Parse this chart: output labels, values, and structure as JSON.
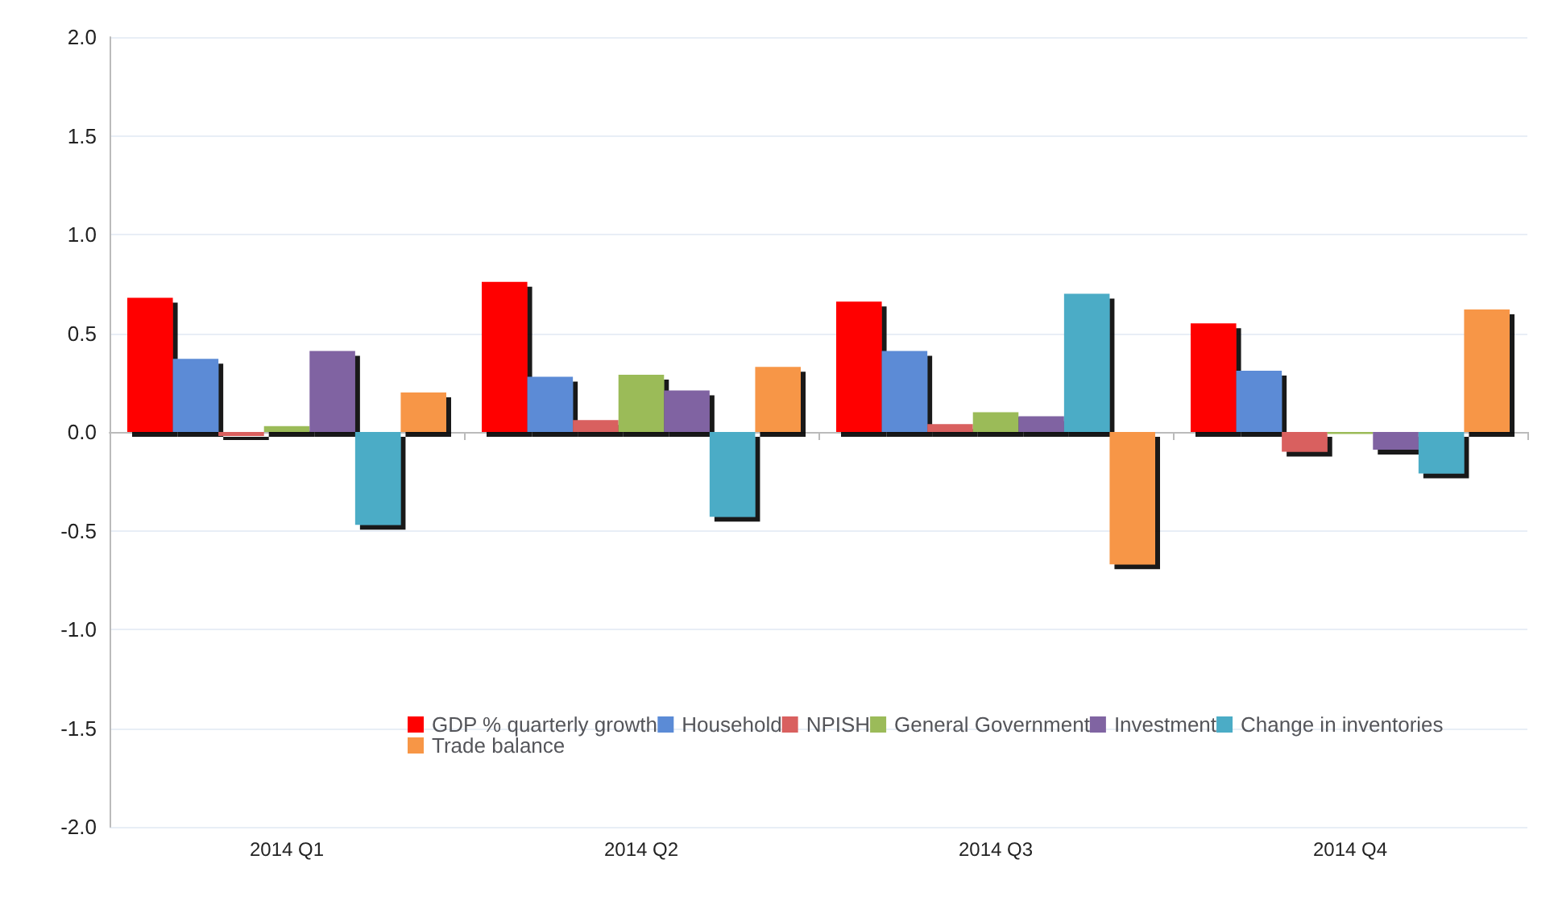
{
  "chart_data": {
    "type": "bar",
    "categories": [
      "2014 Q1",
      "2014 Q2",
      "2014 Q3",
      "2014 Q4"
    ],
    "series": [
      {
        "name": "GDP % quarterly growth",
        "color": "#ff0000",
        "values": [
          0.68,
          0.76,
          0.66,
          0.55
        ]
      },
      {
        "name": "Household",
        "color": "#5b8bd6",
        "values": [
          0.37,
          0.28,
          0.41,
          0.31
        ]
      },
      {
        "name": "NPISH",
        "color": "#d9605f",
        "values": [
          -0.02,
          0.06,
          0.04,
          -0.1
        ]
      },
      {
        "name": "General Government",
        "color": "#9bbb59",
        "values": [
          0.03,
          0.29,
          0.1,
          -0.01
        ]
      },
      {
        "name": "Investment",
        "color": "#8064a2",
        "values": [
          0.41,
          0.21,
          0.08,
          -0.09
        ]
      },
      {
        "name": "Change in inventories",
        "color": "#4bacc6",
        "values": [
          -0.47,
          -0.43,
          0.7,
          -0.21
        ]
      },
      {
        "name": "Trade balance",
        "color": "#f79646",
        "values": [
          0.2,
          0.33,
          -0.67,
          0.62
        ]
      }
    ],
    "ylim": [
      -2,
      2
    ],
    "yticks": [
      {
        "value": -2,
        "label": "-2.0"
      },
      {
        "value": -1.5,
        "label": "-1.5"
      },
      {
        "value": -1,
        "label": "-1.0"
      },
      {
        "value": -0.5,
        "label": "-0.5"
      },
      {
        "value": 0,
        "label": "0.0"
      },
      {
        "value": 0.5,
        "label": "0.5"
      },
      {
        "value": 1,
        "label": "1.0"
      },
      {
        "value": 1.5,
        "label": "1.5"
      },
      {
        "value": 2,
        "label": "2.0"
      }
    ],
    "grid": "y",
    "legend": "bottom right"
  }
}
